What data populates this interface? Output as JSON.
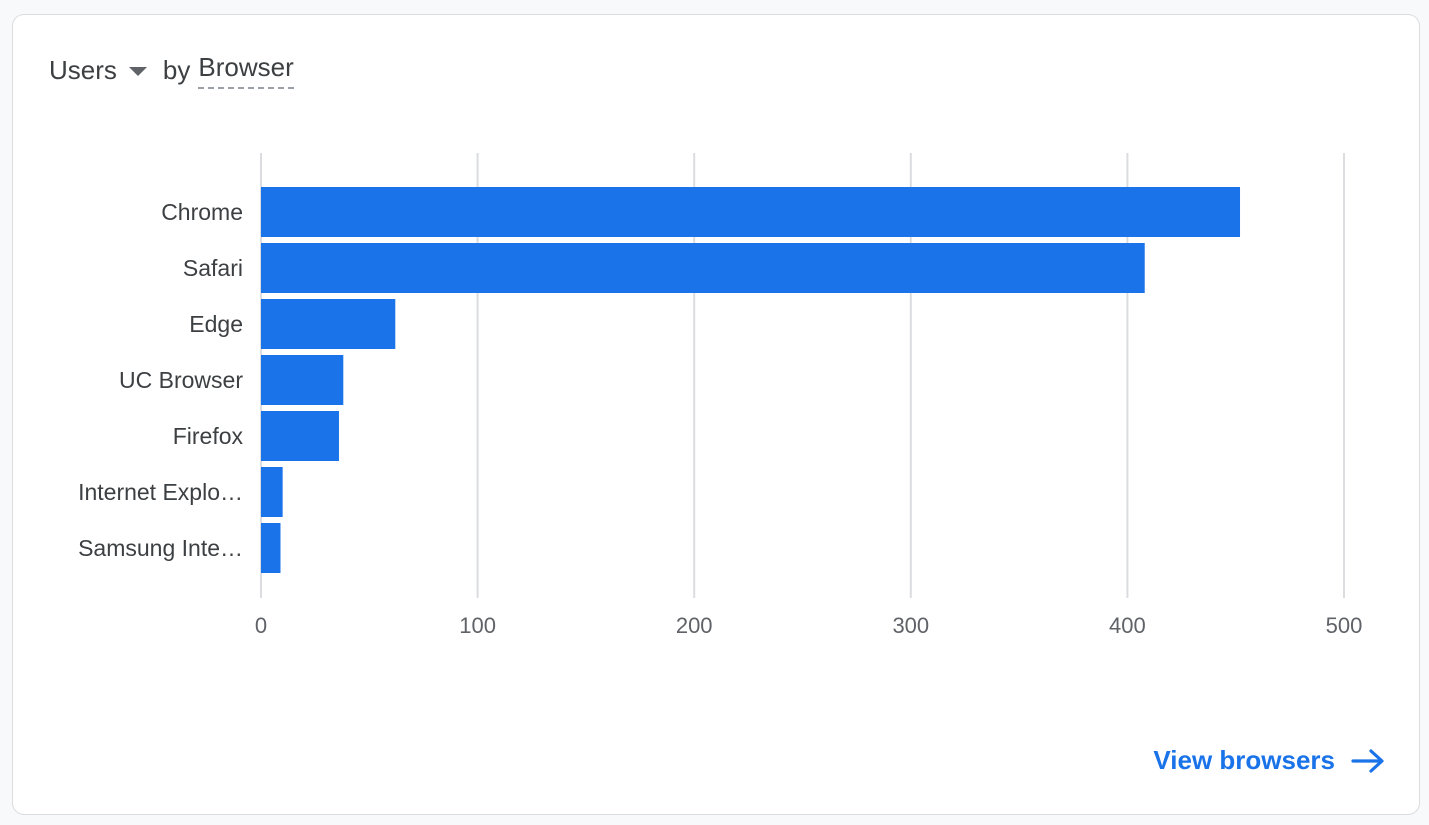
{
  "header": {
    "metric_label": "Users",
    "by_label": "by",
    "dimension_label": "Browser"
  },
  "footer": {
    "view_link_label": "View browsers"
  },
  "colors": {
    "bar": "#1a73e8",
    "gridline": "#dadce0",
    "link": "#1a73e8"
  },
  "icons": {
    "metric_dropdown": "caret-down-icon",
    "view_link": "arrow-right-icon"
  },
  "chart_data": {
    "type": "bar",
    "orientation": "horizontal",
    "categories": [
      "Chrome",
      "Safari",
      "Edge",
      "UC Browser",
      "Firefox",
      "Internet Explo…",
      "Samsung Inte…"
    ],
    "values": [
      452,
      408,
      62,
      38,
      36,
      10,
      9
    ],
    "xlim": [
      0,
      500
    ],
    "xticks": [
      0,
      100,
      200,
      300,
      400,
      500
    ],
    "grid": true,
    "legend": "none"
  }
}
